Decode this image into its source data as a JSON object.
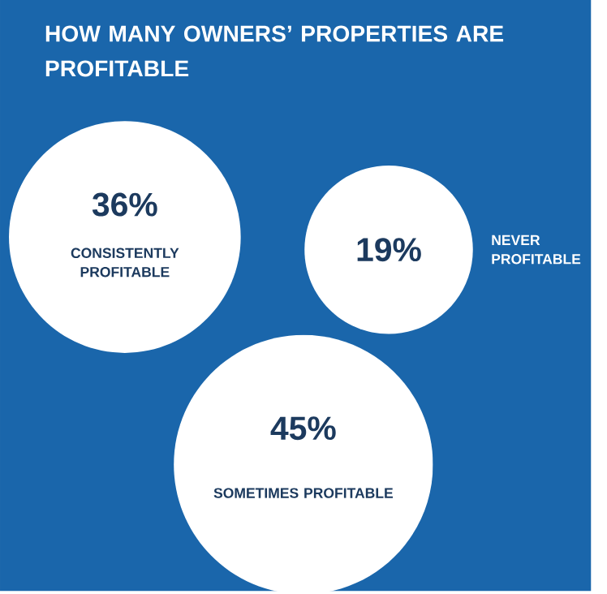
{
  "chart_data": {
    "type": "other",
    "title": "HOW MANY OWNERS’ PROPERTIES ARE PROFITABLE",
    "categories": [
      "CONSISTENTLY PROFITABLE",
      "NEVER PROFITABLE",
      "SOMETIMES PROFITABLE"
    ],
    "values": [
      36,
      19,
      45
    ],
    "value_labels": [
      "36%",
      "19%",
      "45%"
    ],
    "color": "#ffffff"
  }
}
